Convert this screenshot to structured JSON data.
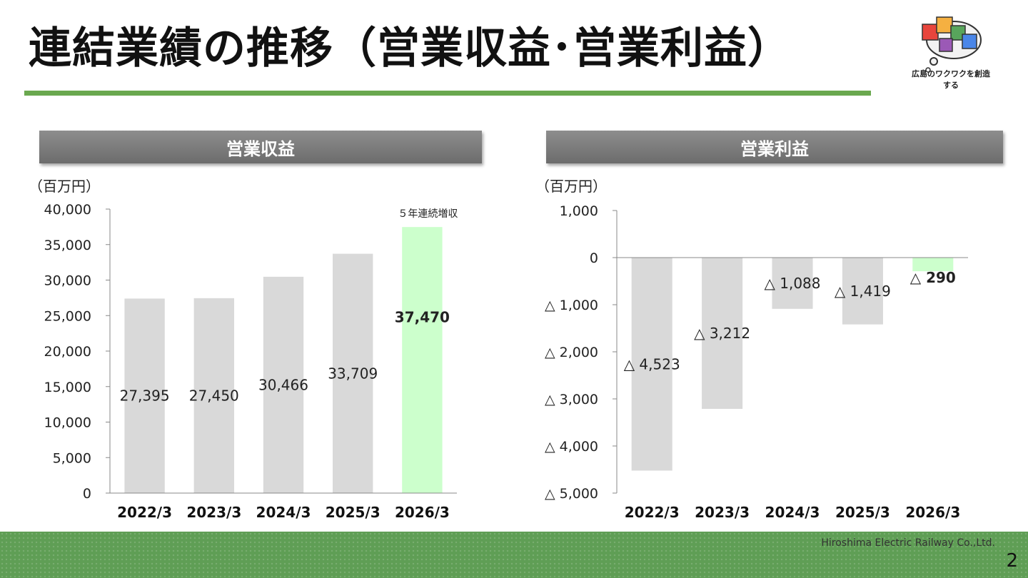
{
  "title": "連結業績の推移（営業収益･営業利益）",
  "logo": {
    "text": "広島のワクワクを創造する"
  },
  "footer": {
    "company": "Hiroshima Electric Railway Co.,Ltd.",
    "page": "2"
  },
  "colors": {
    "accent": "#6aa84f",
    "bar": "#d9d9d9",
    "highlight": "#ccffcc"
  },
  "chart_data": [
    {
      "type": "bar",
      "header": "営業収益",
      "unit": "（百万円）",
      "categories": [
        "2022/3",
        "2023/3",
        "2024/3",
        "2025/3",
        "2026/3"
      ],
      "values": [
        27395,
        27450,
        30466,
        33709,
        37470
      ],
      "value_labels": [
        "27,395",
        "27,450",
        "30,466",
        "33,709",
        "37,470"
      ],
      "ylim": [
        0,
        40000
      ],
      "yticks": [
        0,
        5000,
        10000,
        15000,
        20000,
        25000,
        30000,
        35000,
        40000
      ],
      "ytick_labels": [
        "0",
        "5,000",
        "10,000",
        "15,000",
        "20,000",
        "25,000",
        "30,000",
        "35,000",
        "40,000"
      ],
      "highlight_index": 4,
      "annotation": "５年連続増収"
    },
    {
      "type": "bar",
      "header": "営業利益",
      "unit": "（百万円）",
      "categories": [
        "2022/3",
        "2023/3",
        "2024/3",
        "2025/3",
        "2026/3"
      ],
      "values": [
        -4523,
        -3212,
        -1088,
        -1419,
        -290
      ],
      "value_labels": [
        "△ 4,523",
        "△ 3,212",
        "△ 1,088",
        "△ 1,419",
        "△ 290"
      ],
      "ylim": [
        -5000,
        1000
      ],
      "yticks": [
        1000,
        0,
        -1000,
        -2000,
        -3000,
        -4000,
        -5000
      ],
      "ytick_labels": [
        "1,000",
        "0",
        "△ 1,000",
        "△ 2,000",
        "△ 3,000",
        "△ 4,000",
        "△ 5,000"
      ],
      "highlight_index": 4
    }
  ]
}
